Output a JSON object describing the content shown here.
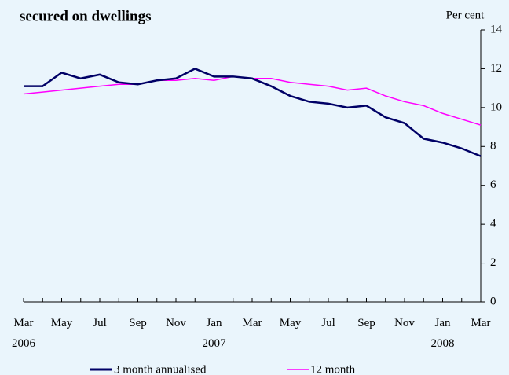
{
  "chart_data": {
    "type": "line",
    "title": "secured on dwellings",
    "y_axis_label": "Per cent",
    "categories": [
      "Mar 2006",
      null,
      "May",
      null,
      "Jul",
      null,
      "Sep",
      null,
      "Nov",
      null,
      "Jan 2007",
      null,
      "Mar",
      null,
      "May",
      null,
      "Jul",
      null,
      "Sep",
      null,
      "Nov",
      null,
      "Jan 2008",
      null,
      "Mar"
    ],
    "series": [
      {
        "name": "3 month annualised",
        "color": "#000066",
        "values": [
          11.1,
          11.1,
          11.8,
          11.5,
          11.7,
          11.3,
          11.2,
          11.4,
          11.5,
          12.0,
          11.6,
          11.6,
          11.5,
          11.1,
          10.6,
          10.3,
          10.2,
          10.0,
          10.1,
          9.5,
          9.2,
          8.4,
          8.2,
          7.9,
          7.5
        ]
      },
      {
        "name": "12 month",
        "color": "#ff00ff",
        "values": [
          10.7,
          10.8,
          10.9,
          11.0,
          11.1,
          11.2,
          11.2,
          11.4,
          11.4,
          11.5,
          11.4,
          11.6,
          11.5,
          11.5,
          11.3,
          11.2,
          11.1,
          10.9,
          11.0,
          10.6,
          10.3,
          10.1,
          9.7,
          9.4,
          9.1
        ]
      }
    ],
    "ylim": [
      0,
      14
    ],
    "yticks": [
      0,
      2,
      4,
      6,
      8,
      10,
      12,
      14
    ]
  }
}
